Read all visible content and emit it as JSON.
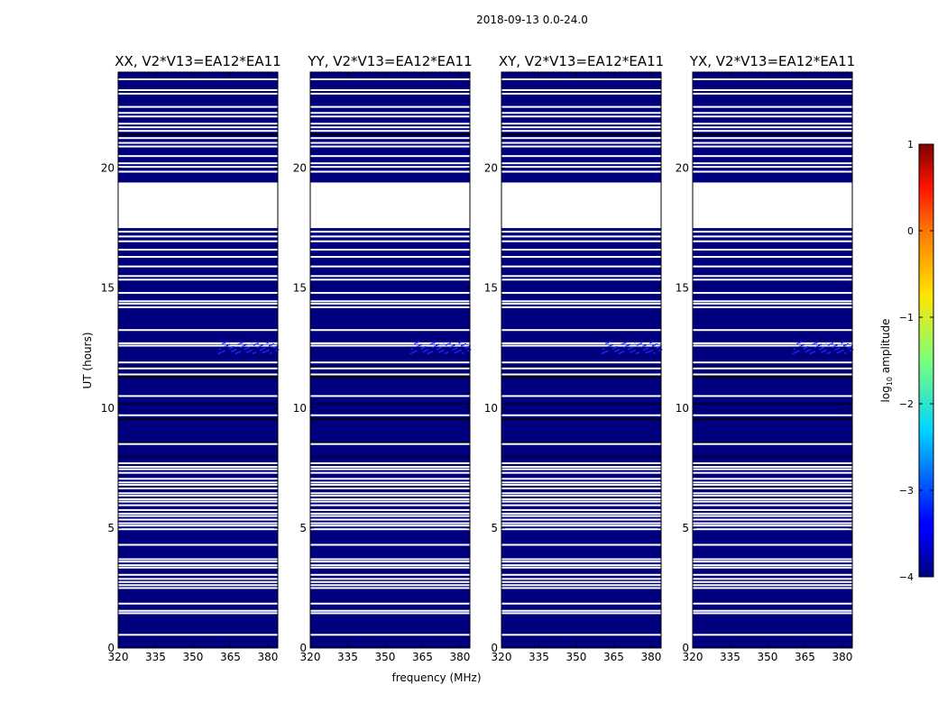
{
  "figure": {
    "suptitle": "2018-09-13 0.0-24.0",
    "xlabel": "frequency (MHz)",
    "ylabel": "UT (hours)"
  },
  "colorbar": {
    "label_prefix": "log",
    "label_sub": "10",
    "label_suffix": " amplitude",
    "range": [
      -4,
      1
    ],
    "ticks": [
      1,
      0,
      -1,
      -2,
      -3,
      -4
    ]
  },
  "colors": {
    "background_data": "#00007f",
    "flag": "#ffffff",
    "dark_band": "#000000",
    "speckle": "#1a2cff"
  },
  "chart_data": {
    "type": "heatmap",
    "xlim": [
      320,
      384
    ],
    "ylim": [
      0,
      24
    ],
    "xticks": [
      320,
      335,
      350,
      365,
      380
    ],
    "yticks": [
      0,
      5,
      10,
      15,
      20
    ],
    "panels": [
      {
        "title": "XX, V2*V13=EA12*EA11"
      },
      {
        "title": "YY, V2*V13=EA12*EA11"
      },
      {
        "title": "XY, V2*V13=EA12*EA11"
      },
      {
        "title": "YX, V2*V13=EA12*EA11"
      }
    ],
    "flagged_gap_hours": [
      17.5,
      19.4
    ],
    "white_lines_hours": [
      0.55,
      1.45,
      1.55,
      1.85,
      2.5,
      2.62,
      2.75,
      2.88,
      3.05,
      3.35,
      3.45,
      3.6,
      3.7,
      4.3,
      4.95,
      5.1,
      5.2,
      5.35,
      5.5,
      5.6,
      5.75,
      5.95,
      6.1,
      6.2,
      6.35,
      6.45,
      6.65,
      6.8,
      6.9,
      7.05,
      7.3,
      7.45,
      7.55,
      7.7,
      8.5,
      9.7,
      10.5,
      11.4,
      11.65,
      11.9,
      12.6,
      12.7,
      13.25,
      14.2,
      14.35,
      14.45,
      14.8,
      15.35,
      15.5,
      15.9,
      16.3,
      16.6,
      16.95,
      17.15,
      17.35,
      19.85,
      20.05,
      20.2,
      20.5,
      20.9,
      21.05,
      21.25,
      21.55,
      21.7,
      21.85,
      22.15,
      22.3,
      22.55,
      23.1,
      23.25,
      23.7
    ],
    "dark_band_hours": [
      [
        11.25,
        11.4
      ],
      [
        11.7,
        11.75
      ],
      [
        9.5,
        9.58
      ],
      [
        10.15,
        10.2
      ],
      [
        21.35,
        21.45
      ],
      [
        21.8,
        21.85
      ],
      [
        8.55,
        8.6
      ],
      [
        7.95,
        8.0
      ]
    ],
    "speckle_region": {
      "freq_range": [
        360,
        384
      ],
      "hours_range": [
        12.3,
        12.8
      ]
    }
  }
}
